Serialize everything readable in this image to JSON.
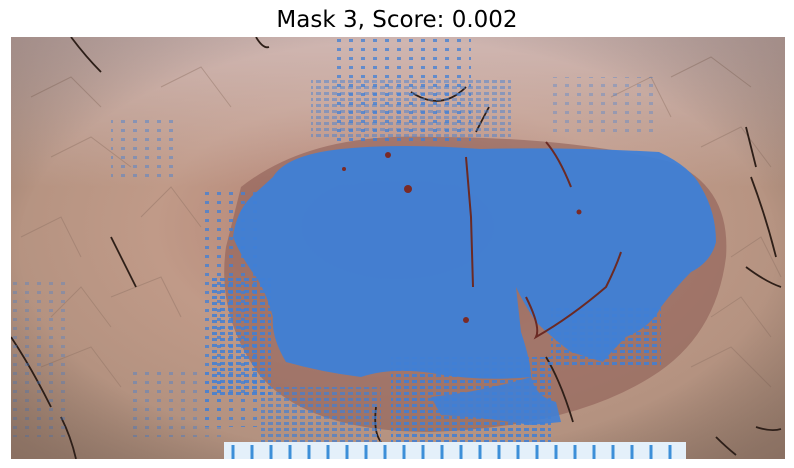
{
  "figure": {
    "title": "Mask 3, Score: 0.002"
  },
  "image": {
    "subject": "skin-lesion-photograph",
    "overlay_color": "#3f7fd6"
  }
}
